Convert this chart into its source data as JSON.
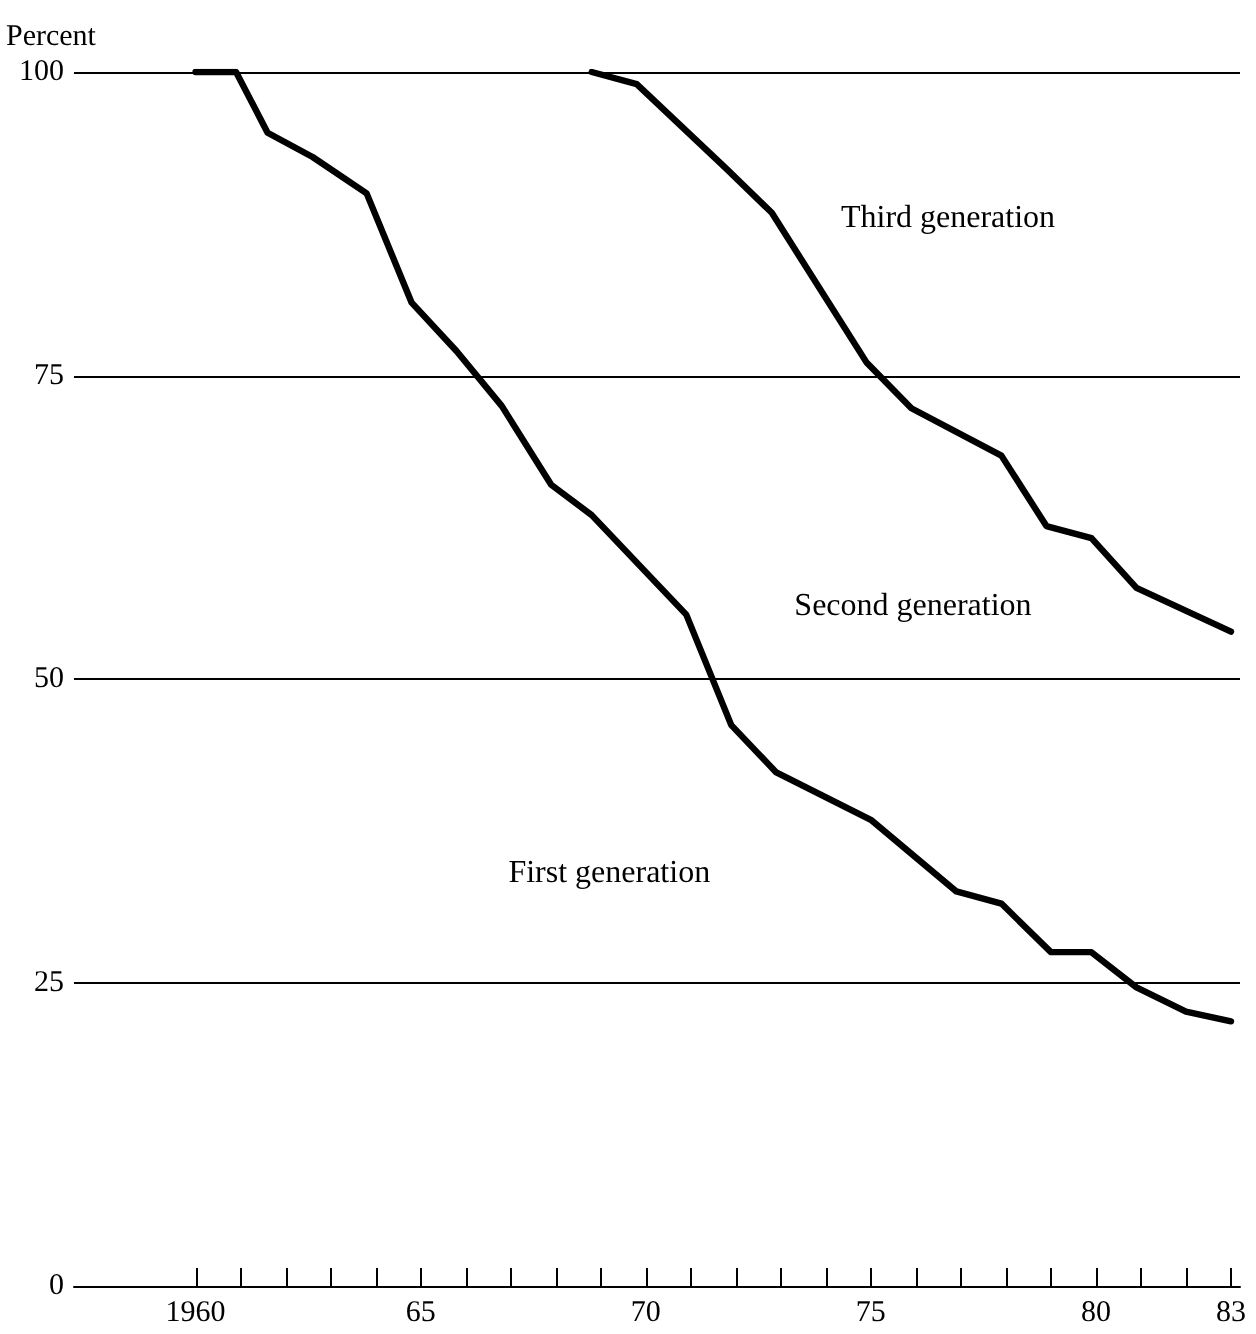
{
  "chart_data": {
    "type": "line",
    "ylabel": "Percent",
    "xlim": [
      1957.3,
      1983.2
    ],
    "xticks": [
      {
        "value": 1960,
        "label": "1960"
      },
      {
        "value": 1961,
        "label": null
      },
      {
        "value": 1962,
        "label": null
      },
      {
        "value": 1963,
        "label": null
      },
      {
        "value": 1964,
        "label": null
      },
      {
        "value": 1965,
        "label": "65"
      },
      {
        "value": 1966,
        "label": null
      },
      {
        "value": 1967,
        "label": null
      },
      {
        "value": 1968,
        "label": null
      },
      {
        "value": 1969,
        "label": null
      },
      {
        "value": 1970,
        "label": "70"
      },
      {
        "value": 1971,
        "label": null
      },
      {
        "value": 1972,
        "label": null
      },
      {
        "value": 1973,
        "label": null
      },
      {
        "value": 1974,
        "label": null
      },
      {
        "value": 1975,
        "label": "75"
      },
      {
        "value": 1976,
        "label": null
      },
      {
        "value": 1977,
        "label": null
      },
      {
        "value": 1978,
        "label": null
      },
      {
        "value": 1979,
        "label": null
      },
      {
        "value": 1980,
        "label": "80"
      },
      {
        "value": 1981,
        "label": null
      },
      {
        "value": 1982,
        "label": null
      },
      {
        "value": 1983,
        "label": "83"
      }
    ],
    "ylim": [
      0,
      100
    ],
    "yticks": [
      0,
      25,
      50,
      75,
      100
    ],
    "grid": "y",
    "marker": "none",
    "line_style": "solid",
    "series": [
      {
        "color": "#000000",
        "x": [
          1960,
          1960.9,
          1961.6,
          1962.6,
          1963.8,
          1964.8,
          1965.8,
          1966.8,
          1967.9,
          1968.8,
          1970.9,
          1971.9,
          1972.9,
          1975.0,
          1976.9,
          1977.9,
          1979.0,
          1979.9,
          1980.9,
          1982.0,
          1983
        ],
        "values": [
          100,
          100,
          95,
          93,
          90,
          81,
          77,
          72.5,
          66,
          63.5,
          55.3,
          46.2,
          42.3,
          38.4,
          32.5,
          31.5,
          27.5,
          27.5,
          24.6,
          22.6,
          21.8
        ]
      },
      {
        "color": "#000000",
        "x": [
          1968.8,
          1969.8,
          1970.8,
          1971.8,
          1972.8,
          1974.9,
          1975.9,
          1977.9,
          1978.9,
          1979.9,
          1980.9,
          1983
        ],
        "values": [
          100,
          99,
          95.5,
          92,
          88.4,
          76.1,
          72.3,
          68.4,
          62.6,
          61.6,
          57.5,
          53.9
        ]
      }
    ],
    "annotations": [
      "Third generation",
      "Second generation",
      "First generation"
    ]
  }
}
